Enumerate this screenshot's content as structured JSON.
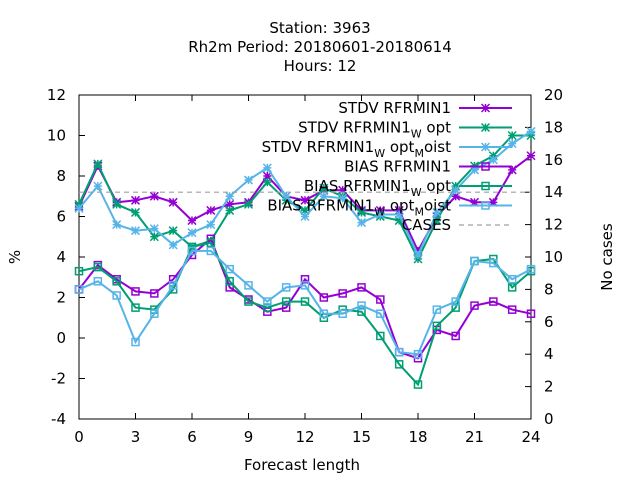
{
  "header": {
    "line1": "Station:     3963",
    "line2": "Rh2m   Period: 20180601-20180614",
    "line3": "Hours:  12"
  },
  "axes": {
    "xlabel": "Forecast length",
    "ylabel_left": "%",
    "ylabel_right": "No cases"
  },
  "colors": {
    "purple": "#9400d3",
    "green": "#009e73",
    "blue": "#56b4e9",
    "gray": "#a0a0a0"
  },
  "chart_data": {
    "type": "line",
    "x": [
      0,
      1,
      2,
      3,
      4,
      5,
      6,
      7,
      8,
      9,
      10,
      11,
      12,
      13,
      14,
      15,
      16,
      17,
      18,
      19,
      20,
      21,
      22,
      23,
      24
    ],
    "xlim": [
      0,
      24
    ],
    "xticks": [
      0,
      3,
      6,
      9,
      12,
      15,
      18,
      21,
      24
    ],
    "ylim": [
      -4,
      12
    ],
    "yticks": [
      -4,
      -2,
      0,
      2,
      4,
      6,
      8,
      10,
      12
    ],
    "y2lim": [
      0,
      20
    ],
    "y2ticks": [
      0,
      2,
      4,
      6,
      8,
      10,
      12,
      14,
      16,
      18,
      20
    ],
    "grid": false,
    "legend_position": "top-right",
    "series": [
      {
        "name": "STDV RFRMIN1",
        "name_main": "STDV RFRMIN1",
        "name_sub": "",
        "name_tail": "",
        "name_sub2": "",
        "name_tail2": "",
        "color": "#9400d3",
        "marker": "star",
        "axis": "y",
        "values": [
          6.5,
          8.5,
          6.7,
          6.8,
          7.0,
          6.7,
          5.8,
          6.3,
          6.6,
          6.7,
          8.0,
          7.0,
          6.8,
          7.3,
          7.3,
          6.3,
          6.3,
          6.3,
          4.3,
          6.0,
          7.0,
          6.7,
          6.7,
          8.3,
          9.0
        ]
      },
      {
        "name": "STDV RFRMIN1_W opt",
        "name_main": "STDV RFRMIN1",
        "name_sub": "W",
        "name_tail": " opt",
        "name_sub2": "",
        "name_tail2": "",
        "color": "#009e73",
        "marker": "star",
        "axis": "y",
        "values": [
          6.6,
          8.6,
          6.6,
          6.2,
          5.0,
          5.3,
          4.5,
          4.8,
          6.3,
          6.6,
          7.7,
          6.8,
          6.3,
          7.4,
          7.0,
          6.2,
          6.0,
          5.8,
          3.9,
          5.8,
          7.5,
          8.5,
          9.0,
          10.0,
          10.0
        ]
      },
      {
        "name": "STDV RFRMIN1_W opt_M oist",
        "name_main": "STDV RFRMIN1",
        "name_sub": "W",
        "name_tail": " opt",
        "name_sub2": "M",
        "name_tail2": "oist",
        "color": "#56b4e9",
        "marker": "star",
        "axis": "y",
        "values": [
          6.4,
          7.5,
          5.6,
          5.3,
          5.4,
          4.6,
          5.2,
          5.6,
          7.0,
          7.8,
          8.4,
          7.0,
          6.0,
          7.0,
          6.9,
          5.7,
          6.1,
          6.1,
          4.1,
          6.2,
          7.3,
          8.3,
          8.8,
          9.6,
          10.2
        ]
      },
      {
        "name": "BIAS RFRMIN1",
        "name_main": "BIAS RFRMIN1",
        "name_sub": "",
        "name_tail": "",
        "name_sub2": "",
        "name_tail2": "",
        "color": "#9400d3",
        "marker": "square",
        "axis": "y",
        "values": [
          2.4,
          3.6,
          2.9,
          2.3,
          2.2,
          2.9,
          4.1,
          4.9,
          2.5,
          1.9,
          1.3,
          1.5,
          2.9,
          2.0,
          2.2,
          2.5,
          1.9,
          -0.7,
          -1.0,
          0.4,
          0.1,
          1.6,
          1.8,
          1.4,
          1.2
        ]
      },
      {
        "name": "BIAS RFRMIN1_W opt",
        "name_main": "BIAS RFRMIN1",
        "name_sub": "W",
        "name_tail": " opt",
        "name_sub2": "",
        "name_tail2": "",
        "color": "#009e73",
        "marker": "square",
        "axis": "y",
        "values": [
          3.3,
          3.5,
          2.8,
          1.5,
          1.4,
          2.4,
          4.5,
          4.7,
          2.8,
          1.8,
          1.5,
          1.8,
          1.8,
          1.0,
          1.4,
          1.3,
          0.1,
          -1.3,
          -2.3,
          0.6,
          1.5,
          3.8,
          3.9,
          2.5,
          3.3
        ]
      },
      {
        "name": "BIAS RFRMIN1_W opt_M oist",
        "name_main": "BIAS RFRMIN1",
        "name_sub": "W",
        "name_tail": " opt",
        "name_sub2": "M",
        "name_tail2": "oist",
        "color": "#56b4e9",
        "marker": "square",
        "axis": "y",
        "values": [
          2.4,
          2.8,
          2.1,
          -0.2,
          1.2,
          2.6,
          4.3,
          4.3,
          3.4,
          2.6,
          1.8,
          2.5,
          2.6,
          1.2,
          1.2,
          1.6,
          1.2,
          -0.7,
          -0.8,
          1.4,
          1.8,
          3.8,
          3.7,
          2.9,
          3.4
        ]
      },
      {
        "name": "CASES",
        "name_main": "CASES",
        "name_sub": "",
        "name_tail": "",
        "name_sub2": "",
        "name_tail2": "",
        "color": "#a0a0a0",
        "marker": "none",
        "dash": true,
        "axis": "y2",
        "values": [
          14,
          14,
          14,
          14,
          14,
          14,
          14,
          14,
          14,
          14,
          14,
          14,
          14,
          14,
          14,
          14,
          14,
          14,
          14,
          14,
          14,
          14,
          14,
          14,
          14
        ]
      }
    ]
  }
}
